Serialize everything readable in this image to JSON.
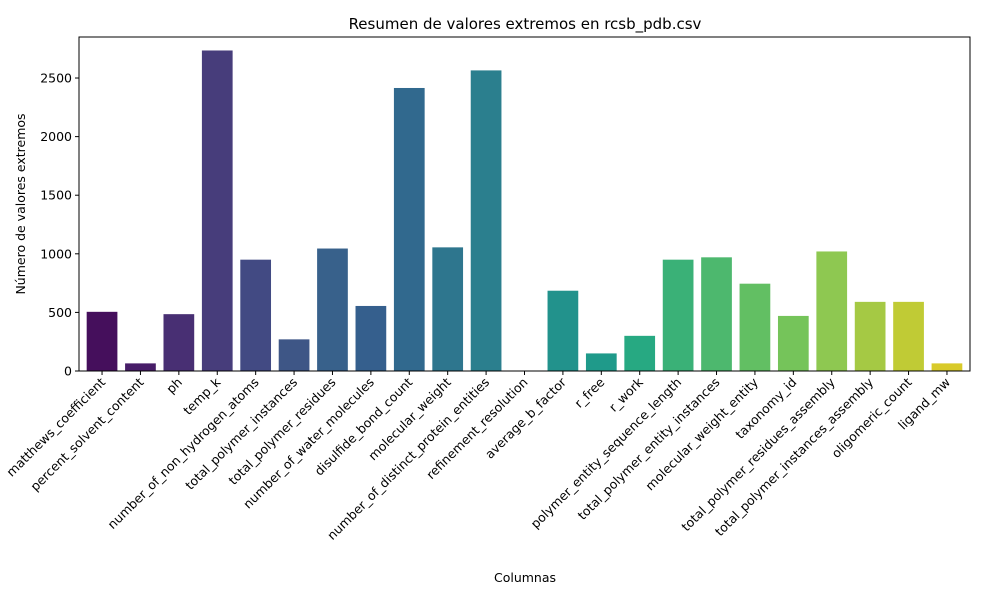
{
  "chart_data": {
    "type": "bar",
    "title": "Resumen de valores extremos en rcsb_pdb.csv",
    "xlabel": "Columnas",
    "ylabel": "Número de valores extremos",
    "ylim": [
      0,
      2850
    ],
    "yticks": [
      0,
      500,
      1000,
      1500,
      2000,
      2500
    ],
    "grid": false,
    "legend": "none",
    "categories": [
      "matthews_coefficient",
      "percent_solvent_content",
      "ph",
      "temp_k",
      "number_of_non_hydrogen_atoms",
      "total_polymer_instances",
      "total_polymer_residues",
      "number_of_water_molecules",
      "disulfide_bond_count",
      "molecular_weight",
      "number_of_distinct_protein_entities",
      "refinement_resolution",
      "average_b_factor",
      "r_free",
      "r_work",
      "polymer_entity_sequence_length",
      "total_polymer_entity_instances",
      "molecular_weight_entity",
      "taxonomy_id",
      "total_polymer_residues_assembly",
      "total_polymer_instances_assembly",
      "oligomeric_count",
      "ligand_mw"
    ],
    "values": [
      505,
      65,
      485,
      2735,
      950,
      270,
      1045,
      555,
      2415,
      1055,
      2565,
      0,
      685,
      150,
      300,
      950,
      970,
      745,
      470,
      1020,
      590,
      590,
      65
    ],
    "colors": [
      "#450f5c",
      "#471d68",
      "#482f73",
      "#473d7b",
      "#424a83",
      "#3e5686",
      "#38618b",
      "#355f8d",
      "#31698e",
      "#2e768e",
      "#2b7f8e",
      "#26898e",
      "#22928c",
      "#1f9a8a",
      "#27a982",
      "#3ab177",
      "#4db86e",
      "#62bf63",
      "#75c45a",
      "#8ec851",
      "#a5c944",
      "#c0cb35",
      "#d8ca2a"
    ]
  }
}
